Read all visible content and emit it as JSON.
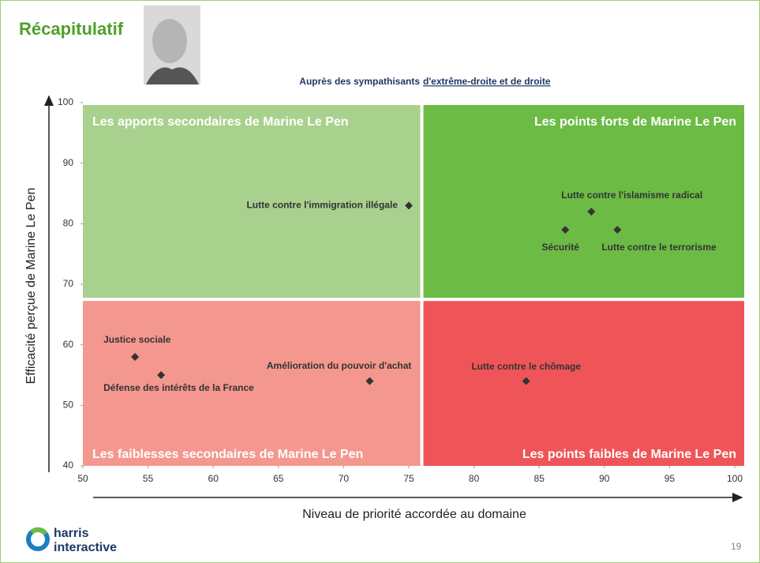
{
  "page": {
    "title": "Récapitulatif",
    "subtitle_prefix": "Auprès des sympathisants",
    "subtitle_link": "d'extrême-droite et de droite",
    "page_number": "19",
    "logo_line1": "harris",
    "logo_line2": "interactive"
  },
  "chart_data": {
    "type": "scatter",
    "xlabel": "Niveau de priorité accordée au domaine",
    "ylabel": "Efficacité perçue de Marine Le Pen",
    "xlim": [
      50,
      100
    ],
    "ylim": [
      40,
      100
    ],
    "xticks": [
      50,
      55,
      60,
      65,
      70,
      75,
      80,
      85,
      90,
      95,
      100
    ],
    "yticks": [
      40,
      50,
      60,
      70,
      80,
      90,
      100
    ],
    "split": {
      "x": 76,
      "y": 67.5
    },
    "quadrants": [
      {
        "label": "Les apports secondaires de Marine Le Pen",
        "color": "#a9d18e"
      },
      {
        "label": "Les points forts de Marine Le Pen",
        "color": "#6cbb45"
      },
      {
        "label": "Les faiblesses secondaires de Marine Le Pen",
        "color": "#f4978e"
      },
      {
        "label": "Les points faibles de Marine Le Pen",
        "color": "#ef5558"
      }
    ],
    "marker_color": "#333333",
    "points": [
      {
        "label": "Lutte contre l'immigration illégale",
        "x": 75,
        "y": 83
      },
      {
        "label": "Lutte contre l'islamisme radical",
        "x": 89,
        "y": 82
      },
      {
        "label": "Sécurité",
        "x": 87,
        "y": 79
      },
      {
        "label": "Lutte contre le terrorisme",
        "x": 91,
        "y": 79
      },
      {
        "label": "Justice sociale",
        "x": 54,
        "y": 58
      },
      {
        "label": "Défense des intérêts de la France",
        "x": 56,
        "y": 55
      },
      {
        "label": "Amélioration du pouvoir d'achat",
        "x": 72,
        "y": 54
      },
      {
        "label": "Lutte contre le chômage",
        "x": 84,
        "y": 54
      }
    ]
  }
}
